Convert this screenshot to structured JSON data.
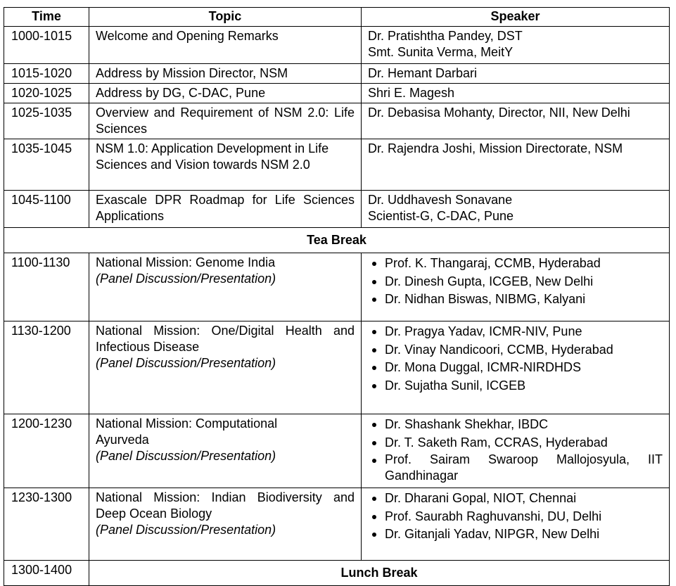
{
  "headers": {
    "time": "Time",
    "topic": "Topic",
    "speaker": "Speaker"
  },
  "rows": [
    {
      "time": "1000-1015",
      "topic": "Welcome and Opening Remarks",
      "speakers": [
        "Dr. Pratishtha Pandey, DST",
        "Smt. Sunita Verma, MeitY"
      ]
    },
    {
      "time": "1015-1020",
      "topic": "Address by Mission Director, NSM",
      "speakers": [
        "Dr. Hemant Darbari"
      ]
    },
    {
      "time": "1020-1025",
      "topic": "Address by DG, C-DAC, Pune",
      "speakers": [
        "Shri E. Magesh"
      ]
    },
    {
      "time": "1025-1035",
      "topic": "Overview and Requirement of NSM 2.0: Life Sciences",
      "speakers": [
        "Dr. Debasisa Mohanty, Director, NII, New Delhi"
      ]
    },
    {
      "time": "1035-1045",
      "topic": "NSM 1.0: Application Development in Life Sciences and Vision towards NSM 2.0",
      "speakers": [
        "Dr. Rajendra Joshi, Mission Directorate, NSM"
      ]
    },
    {
      "time": "1045-1100",
      "topic": "Exascale DPR Roadmap for Life Sciences Applications",
      "speakers": [
        "Dr. Uddhavesh Sonavane",
        "Scientist-G, C-DAC, Pune"
      ]
    }
  ],
  "tea_break": "Tea Break",
  "panels": [
    {
      "time": "1100-1130",
      "topic": "National Mission: Genome India",
      "note": "(Panel Discussion/Presentation)",
      "speakers": [
        "Prof. K. Thangaraj, CCMB, Hyderabad",
        "Dr. Dinesh Gupta, ICGEB, New Delhi",
        "Dr. Nidhan Biswas, NIBMG, Kalyani"
      ]
    },
    {
      "time": "1130-1200",
      "topic": "National Mission: One/Digital Health and Infectious Disease",
      "note": "(Panel Discussion/Presentation)",
      "speakers": [
        "Dr. Pragya Yadav, ICMR-NIV, Pune",
        "Dr. Vinay Nandicoori, CCMB, Hyderabad",
        "Dr. Mona Duggal, ICMR-NIRDHDS",
        "Dr. Sujatha Sunil, ICGEB"
      ]
    },
    {
      "time": "1200-1230",
      "topic": "National Mission: Computational Ayurveda",
      "note": "(Panel Discussion/Presentation)",
      "speakers": [
        "Dr. Shashank Shekhar, IBDC",
        "Dr. T. Saketh Ram, CCRAS, Hyderabad",
        "Prof. Sairam Swaroop Mallojosyula, IIT Gandhinagar"
      ]
    },
    {
      "time": "1230-1300",
      "topic": "National Mission: Indian Biodiversity and Deep Ocean Biology",
      "note": "(Panel Discussion/Presentation)",
      "speakers": [
        "Dr. Dharani Gopal, NIOT, Chennai",
        "Prof. Saurabh Raghuvanshi, DU, Delhi",
        "Dr. Gitanjali Yadav, NIPGR, New Delhi"
      ]
    }
  ],
  "lunch": {
    "time": "1300-1400",
    "label": "Lunch Break"
  }
}
